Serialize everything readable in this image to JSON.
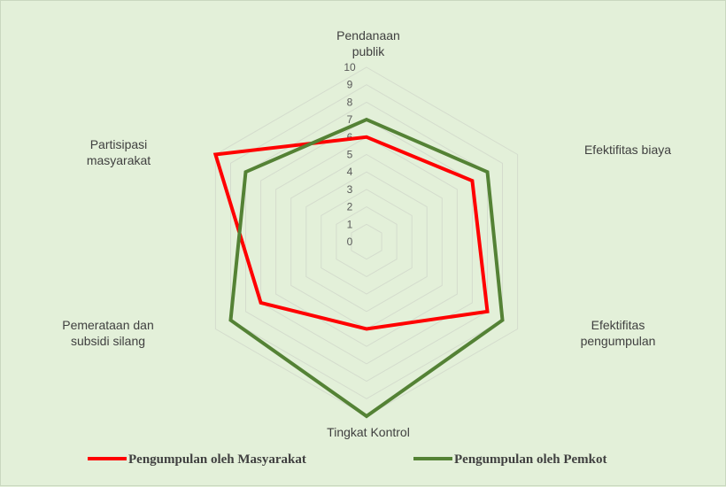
{
  "chart_data": {
    "type": "radar",
    "categories": [
      "Pendanaan publik",
      "Efektifitas biaya",
      "Efektifitas pengumpulan",
      "Tingkat Kontrol",
      "Pemerataan dan subsidi silang",
      "Partisipasi masyarakat"
    ],
    "category_lines": [
      [
        "Pendanaan",
        "publik"
      ],
      [
        "Efektifitas biaya"
      ],
      [
        "Efektifitas",
        "pengumpulan"
      ],
      [
        "Tingkat Kontrol"
      ],
      [
        "Pemerataan dan",
        "subsidi silang"
      ],
      [
        "Partisipasi",
        "masyarakat"
      ]
    ],
    "ticks": [
      "0",
      "1",
      "2",
      "3",
      "4",
      "5",
      "6",
      "7",
      "8",
      "9",
      "10"
    ],
    "rlim": [
      0,
      10
    ],
    "grid": true,
    "legend_position": "bottom",
    "series": [
      {
        "name": "Pengumpulan oleh Masyarakat",
        "color": "#ff0000",
        "values": [
          6,
          7,
          8,
          5,
          7,
          10
        ]
      },
      {
        "name": "Pengumpulan oleh Pemkot",
        "color": "#548235",
        "values": [
          7,
          8,
          9,
          10,
          9,
          8
        ]
      }
    ]
  }
}
